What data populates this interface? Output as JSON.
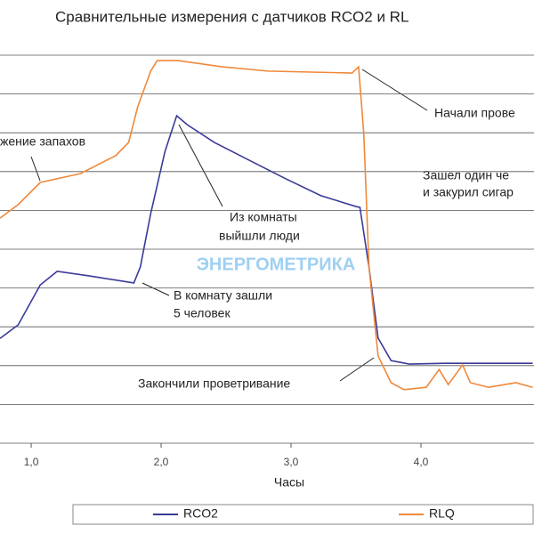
{
  "chart_data": {
    "type": "line",
    "title": "Сравнительные измерения с датчиков RCO2 и RL",
    "xlabel": "Часы",
    "watermark": "ЭНЕРГОМЕТРИКА",
    "xlim": [
      0.76,
      4.87
    ],
    "ylim": [
      0,
      10
    ],
    "xticks": [
      {
        "value": 1,
        "label": "1,0"
      },
      {
        "value": 2,
        "label": "2,0"
      },
      {
        "value": 3,
        "label": "3,0"
      },
      {
        "value": 4,
        "label": "4,0"
      }
    ],
    "gridlines": [
      0,
      1,
      2,
      3,
      4,
      5,
      6,
      7,
      8,
      9,
      10
    ],
    "series": [
      {
        "name": "RCO2",
        "color": "#3a3a9a",
        "x": [
          0.76,
          0.9,
          1.07,
          1.2,
          1.45,
          1.79,
          1.84,
          1.92,
          2.03,
          2.12,
          2.2,
          2.41,
          2.68,
          2.95,
          3.23,
          3.5,
          3.53,
          3.6,
          3.67,
          3.77,
          3.91,
          4.18,
          4.45,
          4.86
        ],
        "values": [
          2.7,
          3.05,
          4.08,
          4.43,
          4.31,
          4.13,
          4.54,
          5.92,
          7.52,
          8.44,
          8.21,
          7.75,
          7.29,
          6.83,
          6.38,
          6.1,
          6.08,
          4.54,
          2.71,
          2.13,
          2.04,
          2.06,
          2.06,
          2.06
        ]
      },
      {
        "name": "RLQ",
        "color": "#f0883a",
        "x": [
          0.76,
          0.9,
          1.07,
          1.38,
          1.65,
          1.75,
          1.82,
          1.92,
          1.97,
          2.13,
          2.47,
          2.82,
          3.47,
          3.52,
          3.56,
          3.6,
          3.67,
          3.77,
          3.87,
          4.04,
          4.14,
          4.21,
          4.32,
          4.38,
          4.52,
          4.73,
          4.86
        ],
        "values": [
          5.8,
          6.15,
          6.72,
          6.95,
          7.41,
          7.75,
          8.67,
          9.59,
          9.86,
          9.86,
          9.7,
          9.59,
          9.54,
          9.7,
          7.98,
          4.54,
          2.25,
          1.56,
          1.38,
          1.44,
          1.9,
          1.51,
          2.02,
          1.56,
          1.44,
          1.56,
          1.44
        ]
      }
    ],
    "annotations": [
      "жение запахов",
      "Из комнаты",
      "выйшли люди",
      "В комнату зашли",
      "5 человек",
      "Начали прове",
      "Зашел один че",
      "и закурил сигар",
      "Закончили проветривание"
    ]
  }
}
